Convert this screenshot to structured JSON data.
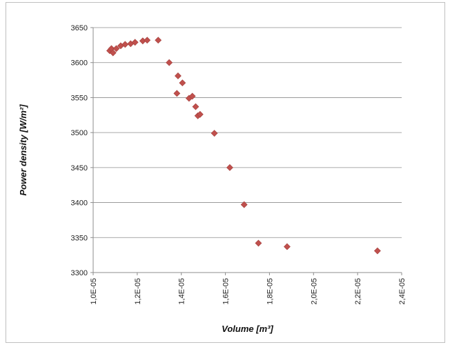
{
  "chart_data": {
    "type": "scatter",
    "title": "",
    "xlabel": "Volume [m³]",
    "ylabel": "Power density [W/m²]",
    "xlim": [
      1e-05,
      2.4e-05
    ],
    "ylim": [
      3300,
      3650
    ],
    "x_ticks": [
      1e-05,
      1.2e-05,
      1.4e-05,
      1.6e-05,
      1.8e-05,
      2e-05,
      2.2e-05,
      2.4e-05
    ],
    "x_tick_labels": [
      "1,0E-05",
      "1,2E-05",
      "1,4E-05",
      "1,6E-05",
      "1,8E-05",
      "2,0E-05",
      "2,2E-05",
      "2,4E-05"
    ],
    "y_ticks": [
      3300,
      3350,
      3400,
      3450,
      3500,
      3550,
      3600,
      3650
    ],
    "y_tick_labels": [
      "3300",
      "3350",
      "3400",
      "3450",
      "3500",
      "3550",
      "3600",
      "3650"
    ],
    "grid": "horizontal",
    "legend": "none",
    "marker": "diamond",
    "marker_color": "#c0504d",
    "series": [
      {
        "x": [
          1.075e-05,
          1.083e-05,
          1.09e-05,
          1.105e-05,
          1.125e-05,
          1.145e-05,
          1.17e-05,
          1.19e-05,
          1.225e-05,
          1.245e-05,
          1.295e-05,
          1.345e-05,
          1.38e-05,
          1.385e-05,
          1.405e-05,
          1.435e-05,
          1.45e-05,
          1.465e-05,
          1.475e-05,
          1.485e-05,
          1.55e-05,
          1.62e-05,
          1.685e-05,
          1.75e-05,
          1.88e-05,
          2.29e-05
        ],
        "y": [
          3617,
          3620,
          3614,
          3620,
          3624,
          3626,
          3627,
          3629,
          3631,
          3632,
          3632,
          3600,
          3556,
          3581,
          3571,
          3549,
          3552,
          3537,
          3524,
          3526,
          3499,
          3450,
          3397,
          3342,
          3337,
          3331
        ]
      }
    ]
  }
}
